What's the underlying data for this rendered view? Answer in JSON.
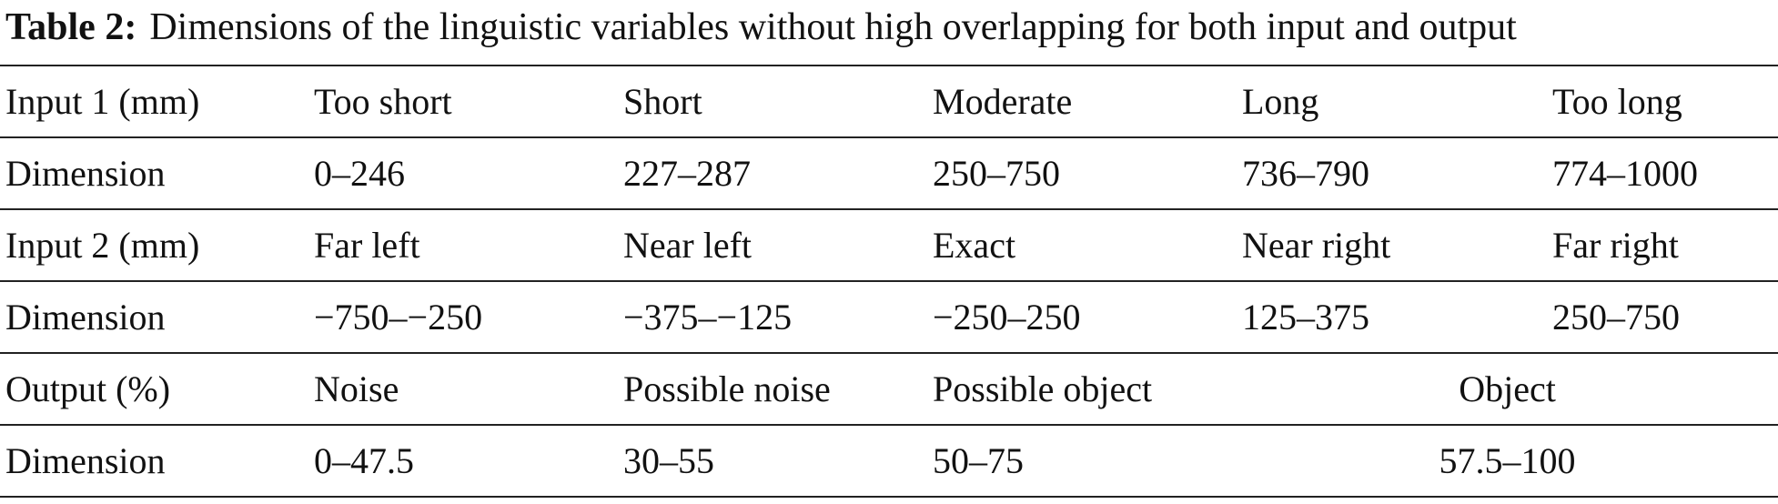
{
  "caption": {
    "label": "Table 2:",
    "text": "Dimensions of the linguistic variables without high overlapping for both input and output"
  },
  "table": {
    "rows": [
      [
        "Input 1 (mm)",
        "Too short",
        "Short",
        "Moderate",
        "Long",
        "Too long"
      ],
      [
        "Dimension",
        "0–246",
        "227–287",
        "250–750",
        "736–790",
        "774–1000"
      ],
      [
        "Input 2 (mm)",
        "Far left",
        "Near left",
        "Exact",
        "Near right",
        "Far right"
      ],
      [
        "Dimension",
        "−750–−250",
        "−375–−125",
        "−250–250",
        "125–375",
        "250–750"
      ],
      [
        "Output (%)",
        "Noise",
        "Possible noise",
        "Possible object",
        "Object"
      ],
      [
        "Dimension",
        "0–47.5",
        "30–55",
        "50–75",
        "57.5–100"
      ]
    ]
  }
}
